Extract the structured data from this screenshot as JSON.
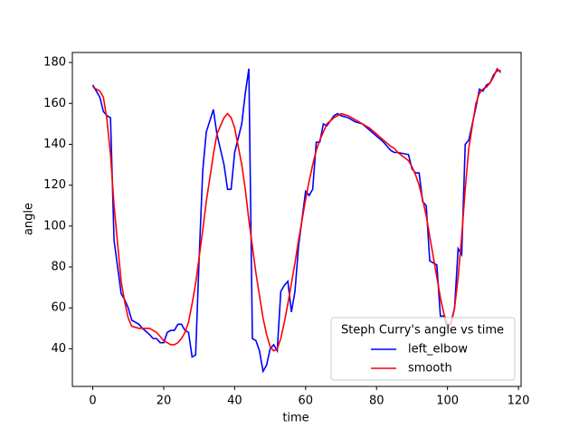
{
  "chart_data": {
    "type": "line",
    "x_label": "time",
    "y_label": "angle",
    "legend_title": "Steph Curry's angle vs time",
    "legend": "lower right",
    "x": [
      0,
      1,
      2,
      3,
      4,
      5,
      6,
      8,
      9,
      10,
      11,
      13,
      14,
      16,
      17,
      18,
      19,
      20,
      21,
      22,
      23,
      24,
      25,
      26,
      27,
      28,
      29,
      30,
      31,
      32,
      34,
      35,
      37,
      38,
      39,
      40,
      42,
      43,
      44,
      45,
      46,
      47,
      48,
      49,
      50,
      51,
      52,
      53,
      54,
      55,
      56,
      57,
      58,
      60,
      61,
      62,
      63,
      64,
      65,
      66,
      68,
      69,
      70,
      72,
      74,
      76,
      78,
      80,
      82,
      84,
      85,
      86,
      89,
      90,
      91,
      92,
      93,
      94,
      95,
      97,
      98,
      99,
      100,
      101,
      102,
      103,
      104,
      105,
      106,
      108,
      109,
      110,
      111,
      112,
      113,
      114,
      115
    ],
    "series": [
      {
        "name": "left_elbow",
        "color": "#0000ff",
        "values": [
          169,
          166,
          163,
          156,
          154,
          153,
          93,
          67,
          64,
          60,
          54,
          52,
          50,
          47,
          45,
          45,
          43,
          43,
          48,
          49,
          49,
          52,
          52,
          49,
          48,
          36,
          37,
          85,
          127,
          146,
          157,
          145,
          130,
          118,
          118,
          136,
          150,
          165,
          177,
          45,
          44,
          39,
          29,
          32,
          40,
          42,
          39,
          68,
          71,
          73,
          58,
          68,
          90,
          117,
          115,
          118,
          141,
          141,
          150,
          149,
          154,
          155,
          154,
          153,
          151,
          150,
          147,
          144,
          141,
          137,
          136,
          136,
          135,
          128,
          126,
          126,
          112,
          110,
          83,
          81,
          56,
          56,
          50,
          53,
          60,
          89,
          86,
          140,
          142,
          158,
          167,
          166,
          169,
          170,
          174,
          176,
          176
        ]
      },
      {
        "name": "smooth",
        "color": "#ff0000",
        "values": [
          168,
          167,
          166,
          163,
          152,
          135,
          110,
          73,
          63,
          55,
          51,
          50,
          50,
          50,
          49,
          48,
          46,
          44,
          43,
          42,
          42,
          43,
          45,
          48,
          53,
          62,
          72,
          85,
          98,
          112,
          135,
          145,
          153,
          155,
          153,
          148,
          130,
          118,
          103,
          90,
          77,
          66,
          55,
          47,
          41,
          39,
          40,
          45,
          53,
          62,
          72,
          82,
          93,
          113,
          122,
          130,
          137,
          142,
          146,
          150,
          153,
          154,
          155,
          154,
          152,
          150,
          148,
          145,
          142,
          139,
          138,
          136,
          132,
          129,
          125,
          120,
          113,
          105,
          95,
          75,
          65,
          57,
          52,
          52,
          60,
          75,
          95,
          118,
          138,
          160,
          165,
          167,
          168,
          170,
          173,
          177,
          175
        ]
      }
    ],
    "xlim": [
      -5.75,
      120.75
    ],
    "xticks": [
      0,
      20,
      40,
      60,
      80,
      100,
      120
    ],
    "ylim": [
      21.6,
      184.9
    ],
    "yticks": [
      40,
      60,
      80,
      100,
      120,
      140,
      160,
      180
    ]
  }
}
